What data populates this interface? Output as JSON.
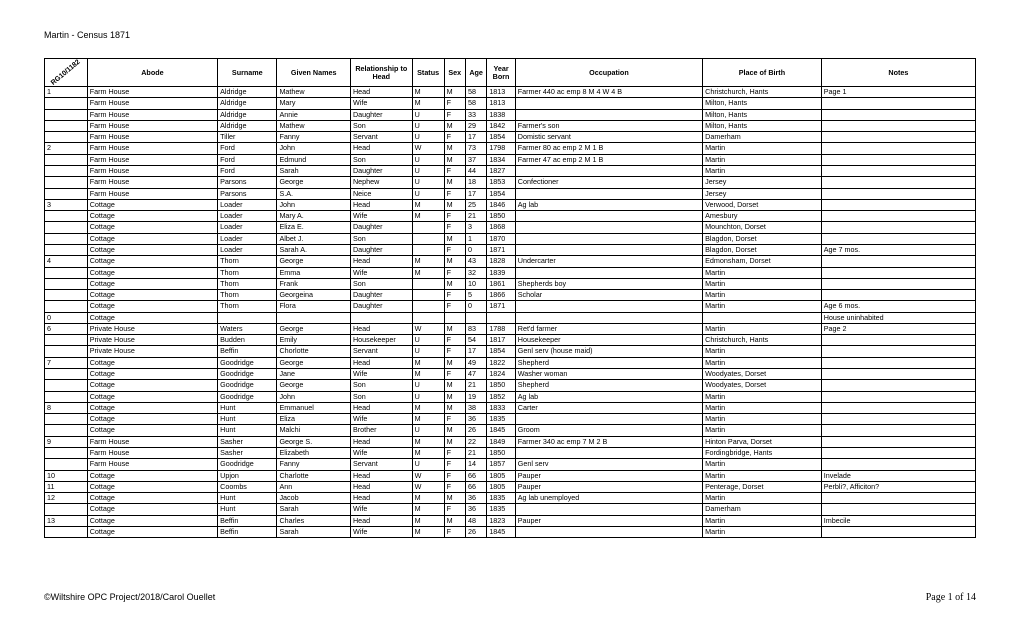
{
  "title": "Martin - Census 1871",
  "ref_label": "RG10/1182",
  "headers": {
    "abode": "Abode",
    "surname": "Surname",
    "given": "Given Names",
    "relationship": "Relationship to Head",
    "status": "Status",
    "sex": "Sex",
    "age": "Age",
    "year": "Year Born",
    "occupation": "Occupation",
    "pob": "Place of Birth",
    "notes": "Notes"
  },
  "footer_left": "©Wiltshire OPC Project/2018/Carol Ouellet",
  "footer_right": "Page 1 of 14",
  "rows": [
    [
      "1",
      "Farm House",
      "Aldridge",
      "Mathew",
      "Head",
      "M",
      "M",
      "58",
      "1813",
      "Farmer 440 ac emp 8 M 4 W 4 B",
      "Christchurch, Hants",
      "Page 1"
    ],
    [
      "",
      "Farm House",
      "Aldridge",
      "Mary",
      "Wife",
      "M",
      "F",
      "58",
      "1813",
      "",
      "Milton, Hants",
      ""
    ],
    [
      "",
      "Farm House",
      "Aldridge",
      "Annie",
      "Daughter",
      "U",
      "F",
      "33",
      "1838",
      "",
      "Milton, Hants",
      ""
    ],
    [
      "",
      "Farm House",
      "Aldridge",
      "Mathew",
      "Son",
      "U",
      "M",
      "29",
      "1842",
      "Farmer's son",
      "Milton, Hants",
      ""
    ],
    [
      "",
      "Farm House",
      "Tiller",
      "Fanny",
      "Servant",
      "U",
      "F",
      "17",
      "1854",
      "Domistic servant",
      "Damerham",
      ""
    ],
    [
      "2",
      "Farm House",
      "Ford",
      "John",
      "Head",
      "W",
      "M",
      "73",
      "1798",
      "Farmer 80 ac emp 2 M 1 B",
      "Martin",
      ""
    ],
    [
      "",
      "Farm House",
      "Ford",
      "Edmund",
      "Son",
      "U",
      "M",
      "37",
      "1834",
      "Farmer 47 ac emp 2 M 1 B",
      "Martin",
      ""
    ],
    [
      "",
      "Farm House",
      "Ford",
      "Sarah",
      "Daughter",
      "U",
      "F",
      "44",
      "1827",
      "",
      "Martin",
      ""
    ],
    [
      "",
      "Farm House",
      "Parsons",
      "George",
      "Nephew",
      "U",
      "M",
      "18",
      "1853",
      "Confectioner",
      "Jersey",
      ""
    ],
    [
      "",
      "Farm House",
      "Parsons",
      "S.A.",
      "Neice",
      "U",
      "F",
      "17",
      "1854",
      "",
      "Jersey",
      ""
    ],
    [
      "3",
      "Cottage",
      "Loader",
      "John",
      "Head",
      "M",
      "M",
      "25",
      "1846",
      "Ag lab",
      "Verwood, Dorset",
      ""
    ],
    [
      "",
      "Cottage",
      "Loader",
      "Mary A.",
      "Wife",
      "M",
      "F",
      "21",
      "1850",
      "",
      "Amesbury",
      ""
    ],
    [
      "",
      "Cottage",
      "Loader",
      "Eliza E.",
      "Daughter",
      "",
      "F",
      "3",
      "1868",
      "",
      "Mounchton, Dorset",
      ""
    ],
    [
      "",
      "Cottage",
      "Loader",
      "Albet J.",
      "Son",
      "",
      "M",
      "1",
      "1870",
      "",
      "Blagdon, Dorset",
      ""
    ],
    [
      "",
      "Cottage",
      "Loader",
      "Sarah A.",
      "Daughter",
      "",
      "F",
      "0",
      "1871",
      "",
      "Blagdon, Dorset",
      "Age 7 mos."
    ],
    [
      "4",
      "Cottage",
      "Thorn",
      "George",
      "Head",
      "M",
      "M",
      "43",
      "1828",
      "Undercarter",
      "Edmonsham, Dorset",
      ""
    ],
    [
      "",
      "Cottage",
      "Thorn",
      "Emma",
      "Wife",
      "M",
      "F",
      "32",
      "1839",
      "",
      "Martin",
      ""
    ],
    [
      "",
      "Cottage",
      "Thorn",
      "Frank",
      "Son",
      "",
      "M",
      "10",
      "1861",
      "Shepherds boy",
      "Martin",
      ""
    ],
    [
      "",
      "Cottage",
      "Thorn",
      "Georgeina",
      "Daughter",
      "",
      "F",
      "5",
      "1866",
      "Scholar",
      "Martin",
      ""
    ],
    [
      "",
      "Cottage",
      "Thorn",
      "Flora",
      "Daughter",
      "",
      "F",
      "0",
      "1871",
      "",
      "Martin",
      "Age 6 mos."
    ],
    [
      "0",
      "Cottage",
      "",
      "",
      "",
      "",
      "",
      "",
      "",
      "",
      "",
      "House uninhabited"
    ],
    [
      "6",
      "Private House",
      "Waters",
      "George",
      "Head",
      "W",
      "M",
      "83",
      "1788",
      "Ret'd farmer",
      "Martin",
      "Page 2"
    ],
    [
      "",
      "Private House",
      "Budden",
      "Emily",
      "Housekeeper",
      "U",
      "F",
      "54",
      "1817",
      "Housekeeper",
      "Christchurch, Hants",
      ""
    ],
    [
      "",
      "Private House",
      "Beffin",
      "Chorlotte",
      "Servant",
      "U",
      "F",
      "17",
      "1854",
      "Genl serv (house maid)",
      "Martin",
      ""
    ],
    [
      "7",
      "Cottage",
      "Goodridge",
      "George",
      "Head",
      "M",
      "M",
      "49",
      "1822",
      "Shepherd",
      "Martin",
      ""
    ],
    [
      "",
      "Cottage",
      "Goodridge",
      "Jane",
      "Wife",
      "M",
      "F",
      "47",
      "1824",
      "Washer woman",
      "Woodyates, Dorset",
      ""
    ],
    [
      "",
      "Cottage",
      "Goodridge",
      "George",
      "Son",
      "U",
      "M",
      "21",
      "1850",
      "Shepherd",
      "Woodyates, Dorset",
      ""
    ],
    [
      "",
      "Cottage",
      "Goodridge",
      "John",
      "Son",
      "U",
      "M",
      "19",
      "1852",
      "Ag lab",
      "Martin",
      ""
    ],
    [
      "8",
      "Cottage",
      "Hunt",
      "Emmanuel",
      "Head",
      "M",
      "M",
      "38",
      "1833",
      "Carter",
      "Martin",
      ""
    ],
    [
      "",
      "Cottage",
      "Hunt",
      "Eliza",
      "Wife",
      "M",
      "F",
      "36",
      "1835",
      "",
      "Martin",
      ""
    ],
    [
      "",
      "Cottage",
      "Hunt",
      "Malchi",
      "Brother",
      "U",
      "M",
      "26",
      "1845",
      "Groom",
      "Martin",
      ""
    ],
    [
      "9",
      "Farm House",
      "Sasher",
      "George S.",
      "Head",
      "M",
      "M",
      "22",
      "1849",
      "Farmer 340 ac emp 7 M 2 B",
      "Hinton Parva, Dorset",
      ""
    ],
    [
      "",
      "Farm House",
      "Sasher",
      "Elizabeth",
      "Wife",
      "M",
      "F",
      "21",
      "1850",
      "",
      "Fordingbridge, Hants",
      ""
    ],
    [
      "",
      "Farm House",
      "Goodridge",
      "Fanny",
      "Servant",
      "U",
      "F",
      "14",
      "1857",
      "Genl serv",
      "Martin",
      ""
    ],
    [
      "10",
      "Cottage",
      "Upjon",
      "Charlotte",
      "Head",
      "W",
      "F",
      "66",
      "1805",
      "Pauper",
      "Martin",
      "Invelade"
    ],
    [
      "11",
      "Cottage",
      "Coombs",
      "Ann",
      "Head",
      "W",
      "F",
      "66",
      "1805",
      "Pauper",
      "Penterage, Dorset",
      "Perbli?, Afficiton?"
    ],
    [
      "12",
      "Cottage",
      "Hunt",
      "Jacob",
      "Head",
      "M",
      "M",
      "36",
      "1835",
      "Ag lab unemployed",
      "Martin",
      ""
    ],
    [
      "",
      "Cottage",
      "Hunt",
      "Sarah",
      "Wife",
      "M",
      "F",
      "36",
      "1835",
      "",
      "Damerham",
      ""
    ],
    [
      "13",
      "Cottage",
      "Beffin",
      "Charles",
      "Head",
      "M",
      "M",
      "48",
      "1823",
      "Pauper",
      "Martin",
      "Imbecile"
    ],
    [
      "",
      "Cottage",
      "Beffin",
      "Sarah",
      "Wife",
      "M",
      "F",
      "26",
      "1845",
      "",
      "Martin",
      ""
    ]
  ]
}
